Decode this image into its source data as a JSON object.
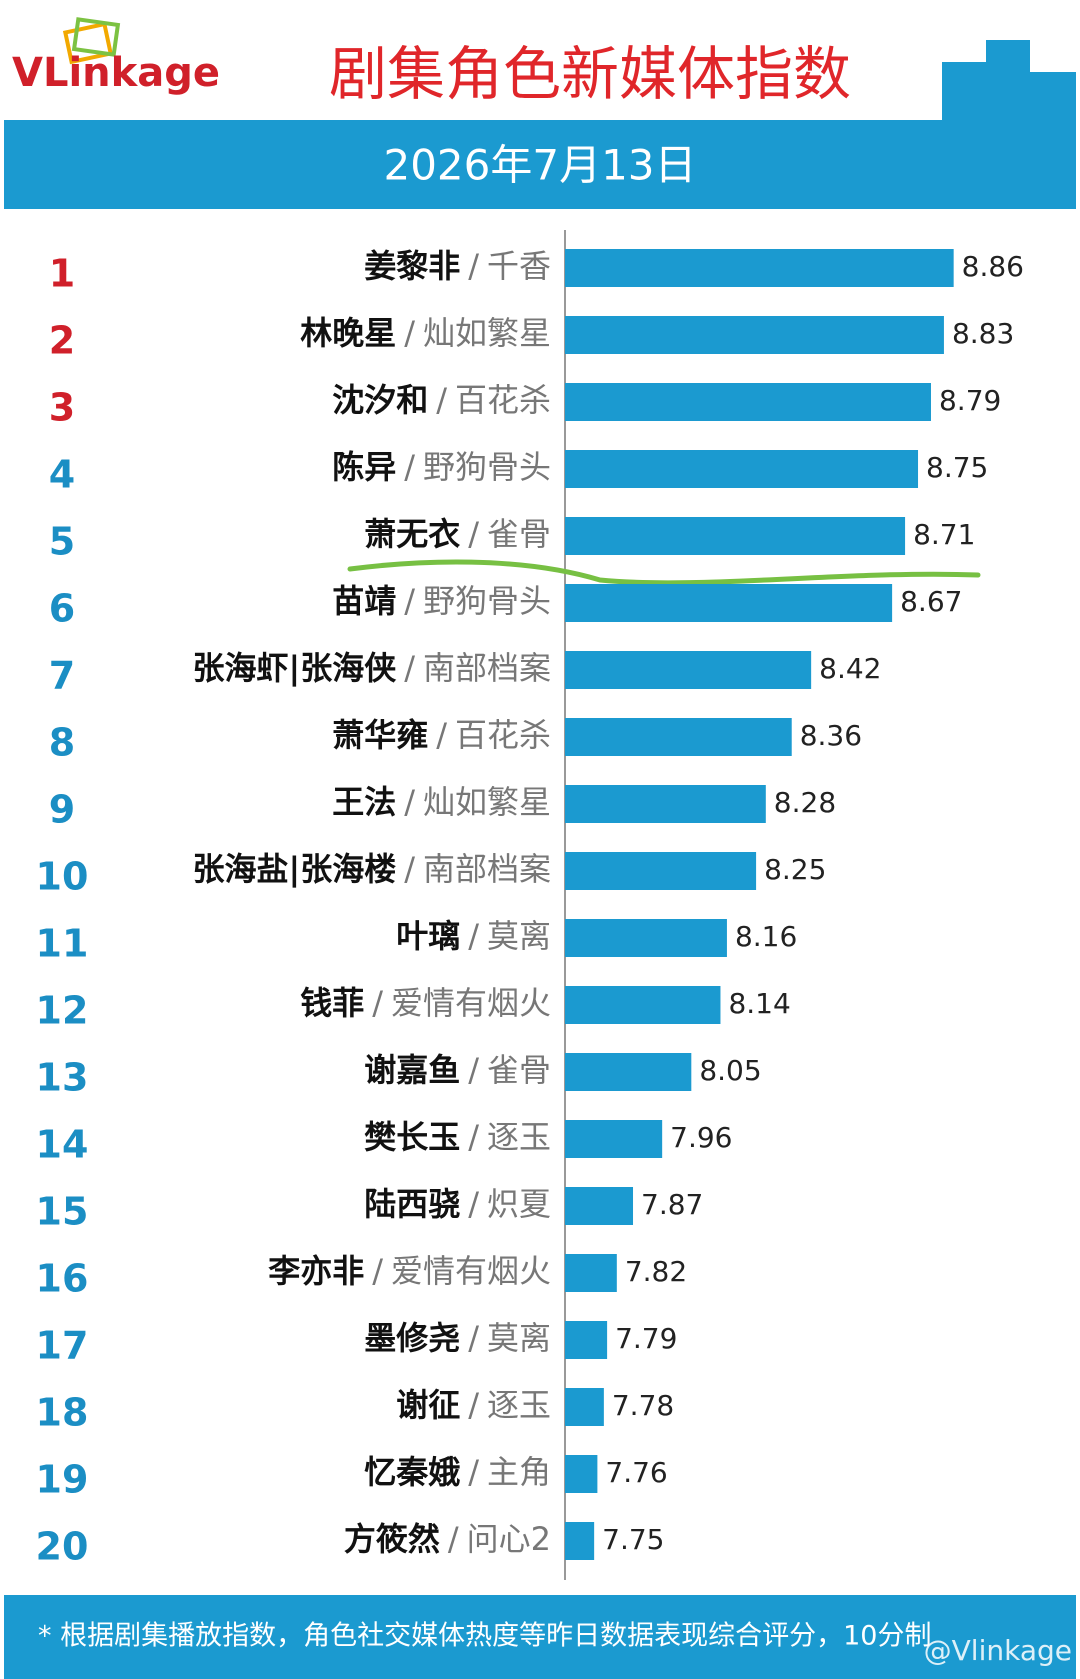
{
  "chart_data": {
    "type": "hbar",
    "logo": "VLinkage",
    "title": "剧集角色新媒体指数",
    "subtitle": "2026年7月13日",
    "footnote": "* 根据剧集播放指数，角色社交媒体热度等昨日数据表现综合评分，10分制",
    "watermark": "@Vlinkage",
    "separator": "/",
    "ranks": [
      1,
      2,
      3,
      4,
      5,
      6,
      7,
      8,
      9,
      10,
      11,
      12,
      13,
      14,
      15,
      16,
      17,
      18,
      19,
      20
    ],
    "categories": [
      "姜黎非",
      "林晚星",
      "沈汐和",
      "陈异",
      "萧无衣",
      "苗靖",
      "张海虾|张海侠",
      "萧华雍",
      "王法",
      "张海盐|张海楼",
      "叶璃",
      "钱菲",
      "谢嘉鱼",
      "樊长玉",
      "陆西骁",
      "李亦非",
      "墨修尧",
      "谢征",
      "忆秦娥",
      "方筱然"
    ],
    "shows": [
      "千香",
      "灿如繁星",
      "百花杀",
      "野狗骨头",
      "雀骨",
      "野狗骨头",
      "南部档案",
      "百花杀",
      "灿如繁星",
      "南部档案",
      "莫离",
      "爱情有烟火",
      "雀骨",
      "逐玉",
      "炽夏",
      "爱情有烟火",
      "莫离",
      "逐玉",
      "主角",
      "问心2"
    ],
    "values": [
      8.86,
      8.83,
      8.79,
      8.75,
      8.71,
      8.67,
      8.42,
      8.36,
      8.28,
      8.25,
      8.16,
      8.14,
      8.05,
      7.96,
      7.87,
      7.82,
      7.79,
      7.78,
      7.76,
      7.75
    ],
    "color": "#1b9ad0",
    "xlim": [
      7.66,
      9.0
    ]
  }
}
